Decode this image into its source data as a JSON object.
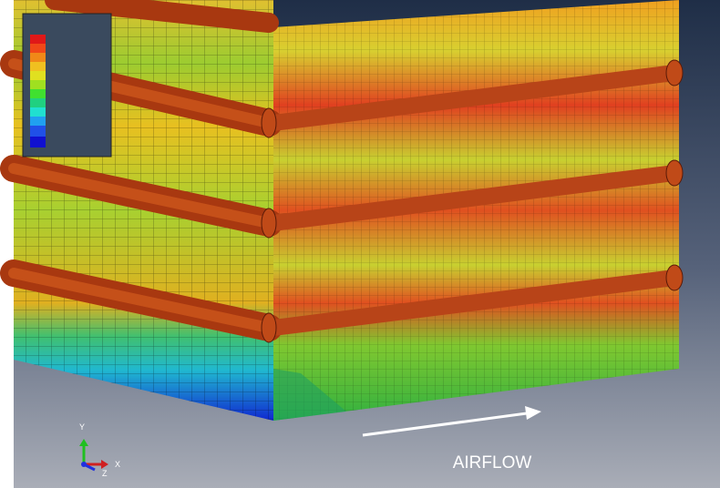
{
  "annotation": {
    "label": "AIRFLOW"
  },
  "triad": {
    "y": "Y",
    "x": "X",
    "z": "Z"
  }
}
